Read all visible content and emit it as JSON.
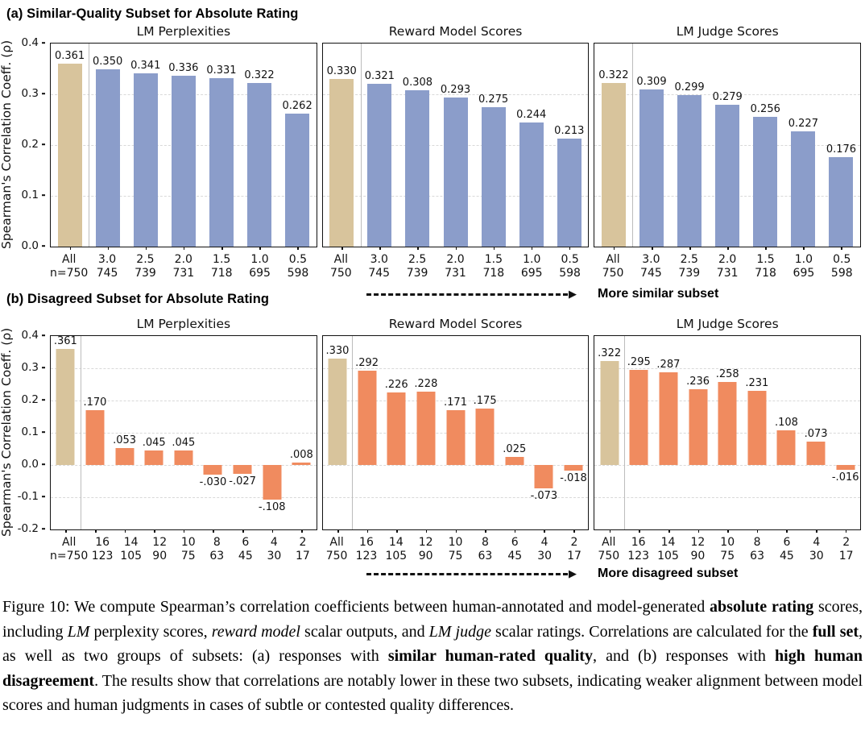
{
  "colors": {
    "all_bar": "#d8c49c",
    "similar_bar": "#8b9dca",
    "disagreed_bar": "#f08b5f",
    "gridline": "#d9d9d9",
    "frame": "#111111"
  },
  "ylabel": "Spearman's Correlation Coeff. (ρ)",
  "section_a": {
    "heading": "(a) Similar-Quality Subset for Absolute Rating",
    "arrow_label": "More similar subset"
  },
  "section_b": {
    "heading": "(b) Disagreed Subset for Absolute Rating",
    "arrow_label": "More disagreed subset"
  },
  "chart_data": [
    {
      "type": "bar",
      "section": "a",
      "title": "LM Perplexities",
      "ylim": [
        0.0,
        0.4
      ],
      "grid": true,
      "gridlines": [
        0.1,
        0.2,
        0.3
      ],
      "yticks": [
        {
          "v": 0.0,
          "label": "0.0"
        },
        {
          "v": 0.1,
          "label": "0.1"
        },
        {
          "v": 0.2,
          "label": "0.2"
        },
        {
          "v": 0.3,
          "label": "0.3"
        },
        {
          "v": 0.4,
          "label": "0.4"
        }
      ],
      "accent_color": "#8b9dca",
      "categories": [
        [
          "All",
          "n=750"
        ],
        [
          "3.0",
          "745"
        ],
        [
          "2.5",
          "739"
        ],
        [
          "2.0",
          "731"
        ],
        [
          "1.5",
          "718"
        ],
        [
          "1.0",
          "695"
        ],
        [
          "0.5",
          "598"
        ]
      ],
      "values": [
        0.361,
        0.35,
        0.341,
        0.336,
        0.331,
        0.322,
        0.262
      ],
      "labels": [
        "0.361",
        "0.350",
        "0.341",
        "0.336",
        "0.331",
        "0.322",
        "0.262"
      ]
    },
    {
      "type": "bar",
      "section": "a",
      "title": "Reward Model Scores",
      "ylim": [
        0.0,
        0.4
      ],
      "grid": true,
      "gridlines": [
        0.1,
        0.2,
        0.3
      ],
      "yticks": [],
      "accent_color": "#8b9dca",
      "categories": [
        [
          "All",
          "750"
        ],
        [
          "3.0",
          "745"
        ],
        [
          "2.5",
          "739"
        ],
        [
          "2.0",
          "731"
        ],
        [
          "1.5",
          "718"
        ],
        [
          "1.0",
          "695"
        ],
        [
          "0.5",
          "598"
        ]
      ],
      "values": [
        0.33,
        0.321,
        0.308,
        0.293,
        0.275,
        0.244,
        0.213
      ],
      "labels": [
        "0.330",
        "0.321",
        "0.308",
        "0.293",
        "0.275",
        "0.244",
        "0.213"
      ]
    },
    {
      "type": "bar",
      "section": "a",
      "title": "LM Judge Scores",
      "ylim": [
        0.0,
        0.4
      ],
      "grid": true,
      "gridlines": [
        0.1,
        0.2,
        0.3
      ],
      "yticks": [],
      "accent_color": "#8b9dca",
      "categories": [
        [
          "All",
          "750"
        ],
        [
          "3.0",
          "745"
        ],
        [
          "2.5",
          "739"
        ],
        [
          "2.0",
          "731"
        ],
        [
          "1.5",
          "718"
        ],
        [
          "1.0",
          "695"
        ],
        [
          "0.5",
          "598"
        ]
      ],
      "values": [
        0.322,
        0.309,
        0.299,
        0.279,
        0.256,
        0.227,
        0.176
      ],
      "labels": [
        "0.322",
        "0.309",
        "0.299",
        "0.279",
        "0.256",
        "0.227",
        "0.176"
      ]
    },
    {
      "type": "bar",
      "section": "b",
      "title": "LM Perplexities",
      "ylim": [
        -0.2,
        0.4
      ],
      "grid": true,
      "gridlines": [
        -0.1,
        0.0,
        0.1,
        0.2,
        0.3
      ],
      "yticks": [
        {
          "v": -0.2,
          "label": "-0.2"
        },
        {
          "v": -0.1,
          "label": "-0.1"
        },
        {
          "v": 0.0,
          "label": "0.0"
        },
        {
          "v": 0.1,
          "label": "0.1"
        },
        {
          "v": 0.2,
          "label": "0.2"
        },
        {
          "v": 0.3,
          "label": "0.3"
        },
        {
          "v": 0.4,
          "label": "0.4"
        }
      ],
      "accent_color": "#f08b5f",
      "categories": [
        [
          "All",
          "n=750"
        ],
        [
          "16",
          "123"
        ],
        [
          "14",
          "105"
        ],
        [
          "12",
          "90"
        ],
        [
          "10",
          "75"
        ],
        [
          "8",
          "63"
        ],
        [
          "6",
          "45"
        ],
        [
          "4",
          "30"
        ],
        [
          "2",
          "17"
        ]
      ],
      "values": [
        0.361,
        0.17,
        0.053,
        0.045,
        0.045,
        -0.03,
        -0.027,
        -0.108,
        0.008
      ],
      "labels": [
        ".361",
        ".170",
        ".053",
        ".045",
        ".045",
        "-.030",
        "-.027",
        "-.108",
        ".008"
      ]
    },
    {
      "type": "bar",
      "section": "b",
      "title": "Reward Model Scores",
      "ylim": [
        -0.2,
        0.4
      ],
      "grid": true,
      "gridlines": [
        -0.1,
        0.0,
        0.1,
        0.2,
        0.3
      ],
      "yticks": [],
      "accent_color": "#f08b5f",
      "categories": [
        [
          "All",
          "750"
        ],
        [
          "16",
          "123"
        ],
        [
          "14",
          "105"
        ],
        [
          "12",
          "90"
        ],
        [
          "10",
          "75"
        ],
        [
          "8",
          "63"
        ],
        [
          "6",
          "45"
        ],
        [
          "4",
          "30"
        ],
        [
          "2",
          "17"
        ]
      ],
      "values": [
        0.33,
        0.292,
        0.226,
        0.228,
        0.171,
        0.175,
        0.025,
        -0.073,
        -0.018
      ],
      "labels": [
        ".330",
        ".292",
        ".226",
        ".228",
        ".171",
        ".175",
        ".025",
        "-.073",
        "-.018"
      ]
    },
    {
      "type": "bar",
      "section": "b",
      "title": "LM Judge Scores",
      "ylim": [
        -0.2,
        0.4
      ],
      "grid": true,
      "gridlines": [
        -0.1,
        0.0,
        0.1,
        0.2,
        0.3
      ],
      "yticks": [],
      "accent_color": "#f08b5f",
      "categories": [
        [
          "All",
          "750"
        ],
        [
          "16",
          "123"
        ],
        [
          "14",
          "105"
        ],
        [
          "12",
          "90"
        ],
        [
          "10",
          "75"
        ],
        [
          "8",
          "63"
        ],
        [
          "6",
          "45"
        ],
        [
          "4",
          "30"
        ],
        [
          "2",
          "17"
        ]
      ],
      "values": [
        0.322,
        0.295,
        0.287,
        0.236,
        0.258,
        0.231,
        0.108,
        0.073,
        -0.016
      ],
      "labels": [
        ".322",
        ".295",
        ".287",
        ".236",
        ".258",
        ".231",
        ".108",
        ".073",
        "-.016"
      ]
    }
  ],
  "caption": {
    "segments": [
      {
        "t": "Figure 10: We compute Spearman’s correlation coefficients between human-annotated and model-generated "
      },
      {
        "t": "absolute rating",
        "b": true
      },
      {
        "t": " scores, including "
      },
      {
        "t": "LM",
        "i": true
      },
      {
        "t": " perplexity scores, "
      },
      {
        "t": "reward model",
        "i": true
      },
      {
        "t": " scalar outputs, and "
      },
      {
        "t": "LM judge",
        "i": true
      },
      {
        "t": " scalar ratings. Correlations are calculated for the "
      },
      {
        "t": "full set",
        "b": true
      },
      {
        "t": ", as well as two groups of subsets: (a) responses with "
      },
      {
        "t": "similar human-rated quality",
        "b": true
      },
      {
        "t": ", and (b) responses with "
      },
      {
        "t": "high human disagreement",
        "b": true
      },
      {
        "t": ". The results show that correlations are notably lower in these two subsets, indicating weaker alignment between model scores and human judgments in cases of subtle or contested quality differences."
      }
    ]
  }
}
